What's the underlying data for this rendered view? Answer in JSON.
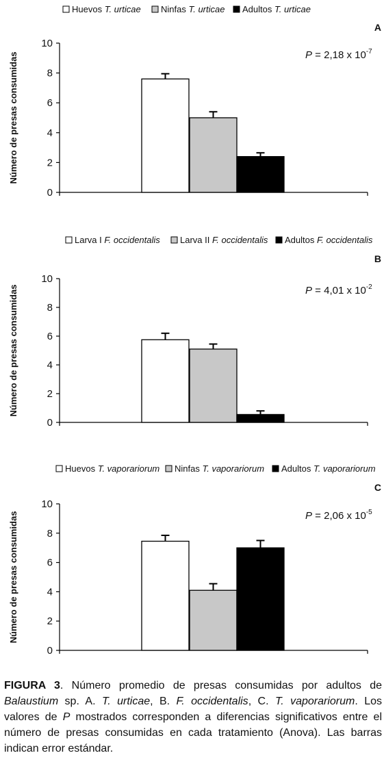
{
  "chart_data": [
    {
      "type": "bar",
      "panel_label": "A",
      "legend": [
        {
          "name": "Huevos",
          "species": "T. urticae",
          "color": "#ffffff"
        },
        {
          "name": "Ninfas",
          "species": "T. urticae",
          "color": "#c8c8c8"
        },
        {
          "name": "Adultos",
          "species": "T. urticae",
          "color": "#000000"
        }
      ],
      "values": [
        7.6,
        5.0,
        2.4
      ],
      "errors": [
        0.35,
        0.4,
        0.25
      ],
      "ylabel": "Número de presas  consumidas",
      "ylim": [
        0,
        10
      ],
      "yticks": [
        "0",
        "2",
        "4",
        "6",
        "8",
        "10"
      ],
      "p_label": "P",
      "p_value": " = 2,18 x 10",
      "p_exp": "-7"
    },
    {
      "type": "bar",
      "panel_label": "B",
      "legend": [
        {
          "name": "Larva I",
          "species": "F. occidentalis",
          "color": "#ffffff"
        },
        {
          "name": "Larva II",
          "species": "F. occidentalis",
          "color": "#c8c8c8"
        },
        {
          "name": "Adultos",
          "species": "F. occidentalis",
          "color": "#000000"
        }
      ],
      "values": [
        5.75,
        5.1,
        0.55
      ],
      "errors": [
        0.45,
        0.35,
        0.25
      ],
      "ylabel": "Número de presas  consumidas",
      "ylim": [
        0,
        10
      ],
      "yticks": [
        "0",
        "2",
        "4",
        "6",
        "8",
        "10"
      ],
      "p_label": "P",
      "p_value": " = 4,01 x 10",
      "p_exp": "-2"
    },
    {
      "type": "bar",
      "panel_label": "C",
      "legend": [
        {
          "name": "Huevos",
          "species": "T. vaporariorum",
          "color": "#ffffff"
        },
        {
          "name": "Ninfas",
          "species": "T. vaporariorum",
          "color": "#c8c8c8"
        },
        {
          "name": "Adultos",
          "species": "T. vaporariorum",
          "color": "#000000"
        }
      ],
      "values": [
        7.45,
        4.1,
        7.0
      ],
      "errors": [
        0.4,
        0.45,
        0.5
      ],
      "ylabel": "Número de presas consumidas",
      "ylim": [
        0,
        10
      ],
      "yticks": [
        "0",
        "2",
        "4",
        "6",
        "8",
        "10"
      ],
      "p_label": "P",
      "p_value": " = 2,06 x 10",
      "p_exp": "-5"
    }
  ],
  "caption": {
    "label": "FIGURA 3",
    "t1": ". Número promedio de presas consumidas por adultos de ",
    "i1": "Balaustium",
    "t2": " sp. A. ",
    "i2": "T. urticae",
    "t3": ", B. ",
    "i3": "F. occidentalis",
    "t4": ", C. ",
    "i4": "T. vaporariorum",
    "t5": ". Los valores de ",
    "i5": "P",
    "t6": " mostrados corresponden a diferencias significativos entre el número de presas consumidas en cada tratamiento (Anova). Las barras indican error estándar."
  }
}
